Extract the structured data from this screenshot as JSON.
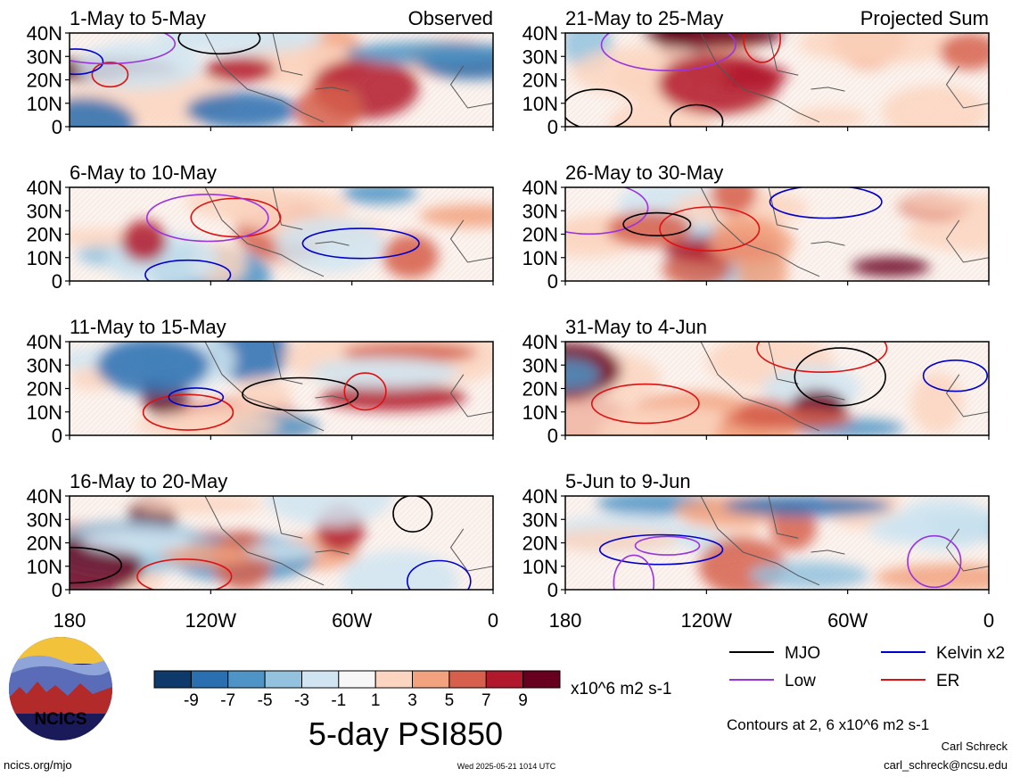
{
  "chart_data": {
    "type": "heatmap",
    "title": "5-day PSI850",
    "column_labels": [
      "Observed",
      "Projected Sum"
    ],
    "latitude_ticks": [
      "40N",
      "30N",
      "20N",
      "10N",
      "0"
    ],
    "longitude_ticks": [
      "180",
      "120W",
      "60W",
      "0"
    ],
    "panels": [
      {
        "label": "1-May to 5-May",
        "column": "Observed"
      },
      {
        "label": "6-May to 10-May",
        "column": "Observed"
      },
      {
        "label": "11-May to 15-May",
        "column": "Observed"
      },
      {
        "label": "16-May to 20-May",
        "column": "Observed"
      },
      {
        "label": "21-May to 25-May",
        "column": "Projected Sum"
      },
      {
        "label": "26-May to 30-May",
        "column": "Projected Sum"
      },
      {
        "label": "31-May to 4-Jun",
        "column": "Projected Sum"
      },
      {
        "label": "5-Jun to 9-Jun",
        "column": "Projected Sum"
      }
    ],
    "colorbar": {
      "labels": [
        "-9",
        "-7",
        "-5",
        "-3",
        "-1",
        "1",
        "3",
        "5",
        "7",
        "9"
      ],
      "colors": [
        "#0d3a6b",
        "#2a6fb0",
        "#4e94c6",
        "#92c2de",
        "#d0e5f1",
        "#f7f7f7",
        "#fbd5c0",
        "#f2a27f",
        "#d6604d",
        "#b2182b",
        "#67001f"
      ],
      "units": "x10^6 m2 s-1"
    },
    "legend": [
      {
        "label": "MJO",
        "color": "#000000"
      },
      {
        "label": "Kelvin x2",
        "color": "#0000cc"
      },
      {
        "label": "Low",
        "color": "#9933dd"
      },
      {
        "label": "ER",
        "color": "#dd1111"
      }
    ],
    "contour_note": "Contours at 2, 6 x10^6 m2 s-1"
  },
  "logo": {
    "text": "NCICS"
  },
  "footer": {
    "left": "ncics.org/mjo",
    "center": "Wed 2025-05-21 1014 UTC",
    "author": "Carl Schreck",
    "email": "carl_schreck@ncsu.edu"
  }
}
